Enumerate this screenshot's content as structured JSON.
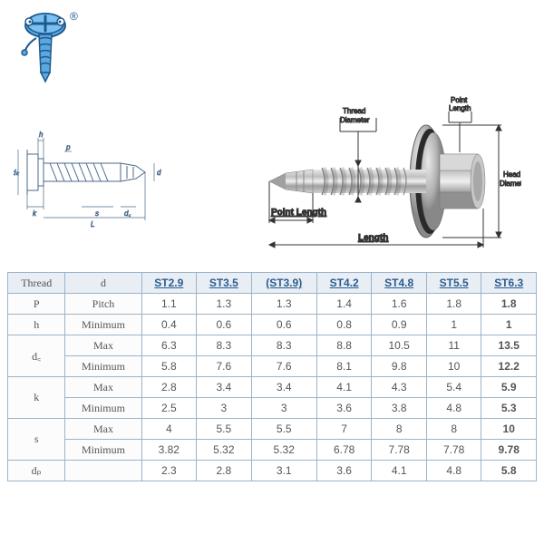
{
  "logo": {
    "body_color": "#5aa8e0",
    "outline_color": "#1e5a8e",
    "registered": "®"
  },
  "diagram_labels": {
    "thread_diameter": "Thread\nDiameter",
    "point_length_top": "Point\nLength",
    "head_diameter": "Head\nDiameter",
    "point_length": "Point Length",
    "length": "Length",
    "h": "h",
    "p": "p",
    "d": "d",
    "dk": "dₖ",
    "k": "k",
    "L": "L",
    "s": "s",
    "dc": "d꜀",
    "dp": "dₚ"
  },
  "table": {
    "header_labels": [
      "Thread",
      "d"
    ],
    "columns": [
      "ST2.9",
      "ST3.5",
      "(ST3.9)",
      "ST4.2",
      "ST4.8",
      "ST5.5",
      "ST6.3"
    ],
    "rows": [
      {
        "sym": "P",
        "label": "Pitch",
        "vals": [
          "1.1",
          "1.3",
          "1.3",
          "1.4",
          "1.6",
          "1.8",
          "1.8"
        ]
      },
      {
        "sym": "h",
        "label": "Minimum",
        "vals": [
          "0.4",
          "0.6",
          "0.6",
          "0.8",
          "0.9",
          "1",
          "1"
        ]
      },
      {
        "sym": "d꜀",
        "label_top": "Max",
        "label_bot": "Minimum",
        "vals_top": [
          "6.3",
          "8.3",
          "8.3",
          "8.8",
          "10.5",
          "11",
          "13.5"
        ],
        "vals_bot": [
          "5.8",
          "7.6",
          "7.6",
          "8.1",
          "9.8",
          "10",
          "12.2"
        ]
      },
      {
        "sym": "k",
        "label_top": "Max",
        "label_bot": "Minimum",
        "vals_top": [
          "2.8",
          "3.4",
          "3.4",
          "4.1",
          "4.3",
          "5.4",
          "5.9"
        ],
        "vals_bot": [
          "2.5",
          "3",
          "3",
          "3.6",
          "3.8",
          "4.8",
          "5.3"
        ]
      },
      {
        "sym": "s",
        "label_top": "Max",
        "label_bot": "Minimum",
        "vals_top": [
          "4",
          "5.5",
          "5.5",
          "7",
          "8",
          "8",
          "10"
        ],
        "vals_bot": [
          "3.82",
          "5.32",
          "5.32",
          "6.78",
          "7.78",
          "7.78",
          "9.78"
        ]
      },
      {
        "sym": "dₚ",
        "label": "",
        "vals": [
          "2.3",
          "2.8",
          "3.1",
          "3.6",
          "4.1",
          "4.8",
          "5.8"
        ]
      }
    ],
    "border_color": "#9cb4c9",
    "header_bg": "#e8eef4",
    "header_color": "#2a5d8f",
    "text_color": "#555555"
  },
  "colors": {
    "screw_metal": "#b8b8b8",
    "screw_highlight": "#e0e0e0",
    "screw_dark": "#707070",
    "washer_dark": "#2a2a2a",
    "dim_line": "#333333"
  }
}
